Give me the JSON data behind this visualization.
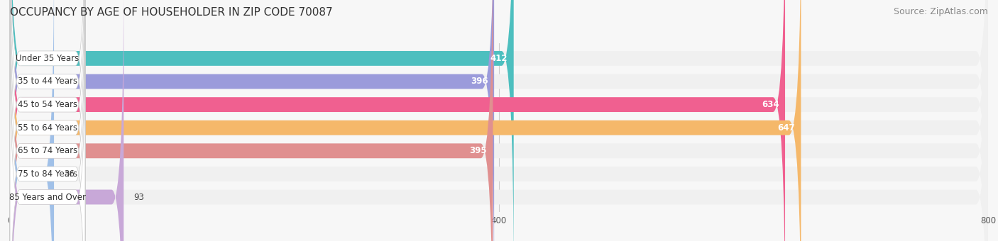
{
  "title": "OCCUPANCY BY AGE OF HOUSEHOLDER IN ZIP CODE 70087",
  "source": "Source: ZipAtlas.com",
  "categories": [
    "Under 35 Years",
    "35 to 44 Years",
    "45 to 54 Years",
    "55 to 64 Years",
    "65 to 74 Years",
    "75 to 84 Years",
    "85 Years and Over"
  ],
  "values": [
    412,
    396,
    634,
    647,
    395,
    36,
    93
  ],
  "bar_colors": [
    "#4dbfbf",
    "#9b9bdb",
    "#f06090",
    "#f5b86a",
    "#e09090",
    "#a0c0e8",
    "#c8a8d8"
  ],
  "bar_bg_color": "#f0f0f0",
  "label_bg_color": "#ffffff",
  "xlim": [
    0,
    800
  ],
  "xticks": [
    0,
    400,
    800
  ],
  "title_fontsize": 11,
  "source_fontsize": 9,
  "label_fontsize": 8.5,
  "value_fontsize": 8.5,
  "bar_height": 0.62,
  "background_color": "#f7f7f7"
}
